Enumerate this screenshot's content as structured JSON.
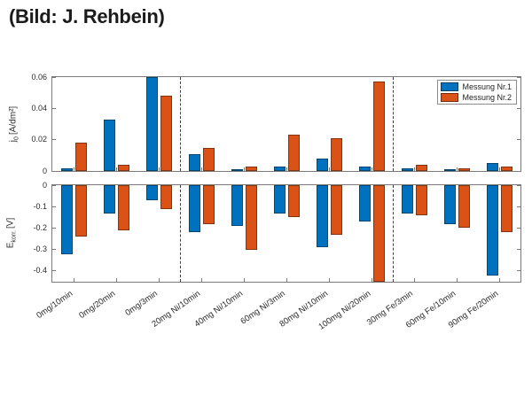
{
  "header": {
    "credit": "(Bild: J. Rehbein)"
  },
  "legend": {
    "items": [
      {
        "label": "Messung Nr.1",
        "color": "#0072BD"
      },
      {
        "label": "Messung Nr.2",
        "color": "#D95319"
      }
    ],
    "position": "northeast"
  },
  "axes": {
    "top_ylabel": {
      "main": "j",
      "sub": "0",
      "unit": "[A/dm²]"
    },
    "bottom_ylabel": {
      "main": "E",
      "sub": "korr.",
      "unit": "[V]"
    }
  },
  "chart_data": [
    {
      "type": "bar",
      "title": "",
      "ylabel": "j0 [A/dm²]",
      "categories": [
        "0mg/10min",
        "0mg/20min",
        "0mg/3min",
        "20mg Ni/10min",
        "40mg Ni/10min",
        "60mg Ni/3min",
        "80mg Ni/10min",
        "100mg Ni/20min",
        "30mg Fe/3min",
        "60mg Fe/10min",
        "90mg Fe/20min"
      ],
      "series": [
        {
          "name": "Messung Nr.1",
          "color": "#0072BD",
          "values": [
            0.002,
            0.033,
            0.06,
            0.011,
            0.001,
            0.003,
            0.008,
            0.003,
            0.002,
            0.001,
            0.005
          ]
        },
        {
          "name": "Messung Nr.2",
          "color": "#D95319",
          "values": [
            0.018,
            0.004,
            0.048,
            0.015,
            0.003,
            0.023,
            0.021,
            0.057,
            0.004,
            0.002,
            0.003
          ]
        }
      ],
      "ylim": [
        0,
        0.06
      ],
      "yticks": [
        0,
        0.02,
        0.04,
        0.06
      ],
      "ytick_labels": [
        "0",
        "0.02",
        "0.04",
        "0.06"
      ],
      "separators_after": [
        2,
        7
      ],
      "grid": false,
      "legend_position": "northeast",
      "show_x_labels": false
    },
    {
      "type": "bar",
      "title": "",
      "ylabel": "Ekorr. [V]",
      "categories": [
        "0mg/10min",
        "0mg/20min",
        "0mg/3min",
        "20mg Ni/10min",
        "40mg Ni/10min",
        "60mg Ni/3min",
        "80mg Ni/10min",
        "100mg Ni/20min",
        "30mg Fe/3min",
        "60mg Fe/10min",
        "90mg Fe/20min"
      ],
      "series": [
        {
          "name": "Messung Nr.1",
          "color": "#0072BD",
          "values": [
            -0.32,
            -0.13,
            -0.07,
            -0.22,
            -0.19,
            -0.13,
            -0.29,
            -0.17,
            -0.13,
            -0.18,
            -0.42
          ]
        },
        {
          "name": "Messung Nr.2",
          "color": "#D95319",
          "values": [
            -0.24,
            -0.21,
            -0.11,
            -0.18,
            -0.3,
            -0.15,
            -0.23,
            -0.45,
            -0.14,
            -0.2,
            -0.22
          ]
        }
      ],
      "ylim": [
        -0.45,
        0
      ],
      "yticks": [
        0,
        -0.1,
        -0.2,
        -0.3,
        -0.4
      ],
      "ytick_labels": [
        "0",
        "-0.1",
        "-0.2",
        "-0.3",
        "-0.4"
      ],
      "separators_after": [
        2,
        7
      ],
      "grid": false,
      "show_x_labels": true
    }
  ]
}
